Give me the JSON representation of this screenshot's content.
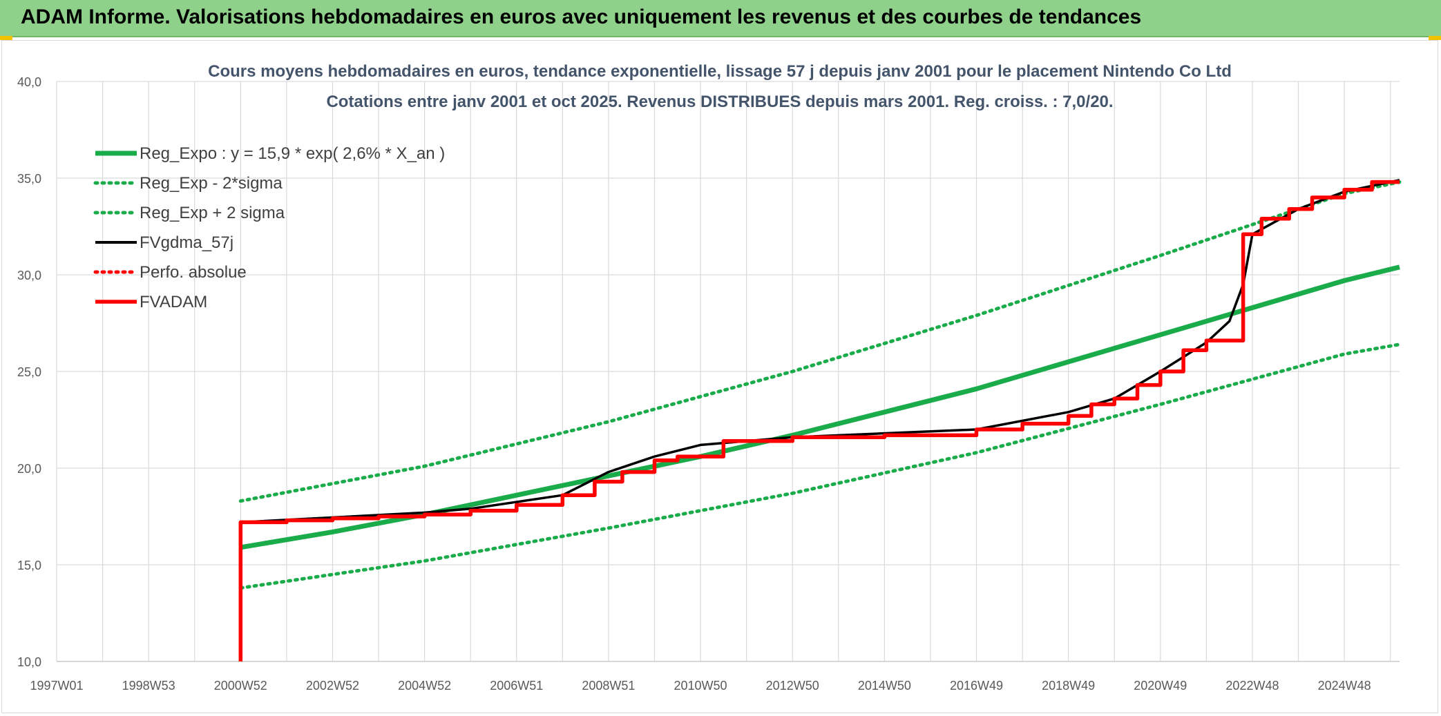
{
  "banner": {
    "title": "ADAM Informe. Valorisations hebdomadaires en euros avec uniquement les revenus et des courbes de tendances"
  },
  "chart_data": {
    "type": "line",
    "title": "Cours moyens hebdomadaires en euros, tendance exponentielle, lissage 57 j depuis janv 2001 pour le placement Nintendo Co Ltd",
    "subtitle": "Cotations entre janv 2001 et oct 2025. Revenus DISTRIBUES depuis mars 2001. Reg. croiss. : 7,0/20.",
    "xlabel": "",
    "ylabel": "",
    "ylim": [
      10,
      40
    ],
    "yticks": [
      "10,0",
      "15,0",
      "20,0",
      "25,0",
      "30,0",
      "35,0",
      "40,0"
    ],
    "xlim": [
      1997.0,
      2026.2
    ],
    "xticks": [
      {
        "label": "1997W01",
        "x": 1997.0
      },
      {
        "label": "1998W53",
        "x": 1999.0
      },
      {
        "label": "2000W52",
        "x": 2001.0
      },
      {
        "label": "2002W52",
        "x": 2003.0
      },
      {
        "label": "2004W52",
        "x": 2005.0
      },
      {
        "label": "2006W51",
        "x": 2007.0
      },
      {
        "label": "2008W51",
        "x": 2009.0
      },
      {
        "label": "2010W50",
        "x": 2011.0
      },
      {
        "label": "2012W50",
        "x": 2013.0
      },
      {
        "label": "2014W50",
        "x": 2015.0
      },
      {
        "label": "2016W49",
        "x": 2017.0
      },
      {
        "label": "2018W49",
        "x": 2019.0
      },
      {
        "label": "2020W49",
        "x": 2021.0
      },
      {
        "label": "2022W48",
        "x": 2023.0
      },
      {
        "label": "2024W48",
        "x": 2025.0
      }
    ],
    "grid": true,
    "legend_position": "top-left",
    "series": [
      {
        "name": "Reg_Expo : y = 15,9 * exp( 2,6% *  X_an )",
        "style": "solid",
        "color": "#1aab4a",
        "x": [
          2001.0,
          2003.0,
          2005.0,
          2007.0,
          2009.0,
          2011.0,
          2013.0,
          2015.0,
          2017.0,
          2019.0,
          2021.0,
          2023.0,
          2025.0,
          2026.2
        ],
        "values": [
          15.9,
          16.7,
          17.6,
          18.6,
          19.6,
          20.6,
          21.7,
          22.9,
          24.1,
          25.5,
          26.9,
          28.3,
          29.7,
          30.4
        ]
      },
      {
        "name": "Reg_Exp - 2*sigma",
        "style": "dotted",
        "color": "#1aab4a",
        "x": [
          2001.0,
          2005.0,
          2009.0,
          2013.0,
          2017.0,
          2021.0,
          2025.0,
          2026.2
        ],
        "values": [
          13.8,
          15.2,
          16.9,
          18.7,
          20.8,
          23.3,
          25.9,
          26.4
        ]
      },
      {
        "name": "Reg_Exp + 2 sigma",
        "style": "dotted",
        "color": "#1aab4a",
        "x": [
          2001.0,
          2005.0,
          2009.0,
          2013.0,
          2017.0,
          2021.0,
          2023.0,
          2025.0,
          2026.2
        ],
        "values": [
          18.3,
          20.1,
          22.4,
          25.0,
          27.9,
          31.0,
          32.6,
          34.2,
          34.8
        ]
      },
      {
        "name": "FVgdma_57j",
        "style": "solid",
        "color": "#000000",
        "x": [
          2001.0,
          2005.0,
          2006.0,
          2008.0,
          2009.0,
          2010.0,
          2011.0,
          2013.0,
          2017.0,
          2019.0,
          2020.0,
          2021.0,
          2022.0,
          2022.5,
          2022.8,
          2023.0,
          2024.0,
          2025.0,
          2026.2
        ],
        "values": [
          17.2,
          17.7,
          17.9,
          18.6,
          19.8,
          20.6,
          21.2,
          21.6,
          22.0,
          22.9,
          23.6,
          25.0,
          26.5,
          27.6,
          29.5,
          32.1,
          33.4,
          34.3,
          34.9
        ]
      },
      {
        "name": "Perfo. absolue",
        "style": "dotted",
        "color": "#ff0000",
        "x": [],
        "values": []
      },
      {
        "name": "FVADAM",
        "style": "solid-step",
        "color": "#ff0000",
        "x": [
          2001.0,
          2001.0,
          2002.0,
          2003.0,
          2004.0,
          2005.0,
          2006.0,
          2007.0,
          2008.0,
          2008.7,
          2009.3,
          2010.0,
          2010.5,
          2011.5,
          2013.0,
          2015.0,
          2017.0,
          2018.0,
          2019.0,
          2019.5,
          2020.0,
          2020.5,
          2021.0,
          2021.5,
          2022.0,
          2022.8,
          2023.2,
          2023.8,
          2024.3,
          2025.0,
          2025.6,
          2026.2
        ],
        "values": [
          10.0,
          17.2,
          17.3,
          17.4,
          17.5,
          17.6,
          17.8,
          18.1,
          18.6,
          19.3,
          19.8,
          20.4,
          20.6,
          21.4,
          21.6,
          21.7,
          22.0,
          22.3,
          22.7,
          23.3,
          23.6,
          24.3,
          25.0,
          26.1,
          26.6,
          32.1,
          32.9,
          33.4,
          34.0,
          34.4,
          34.8,
          34.8
        ]
      }
    ]
  }
}
